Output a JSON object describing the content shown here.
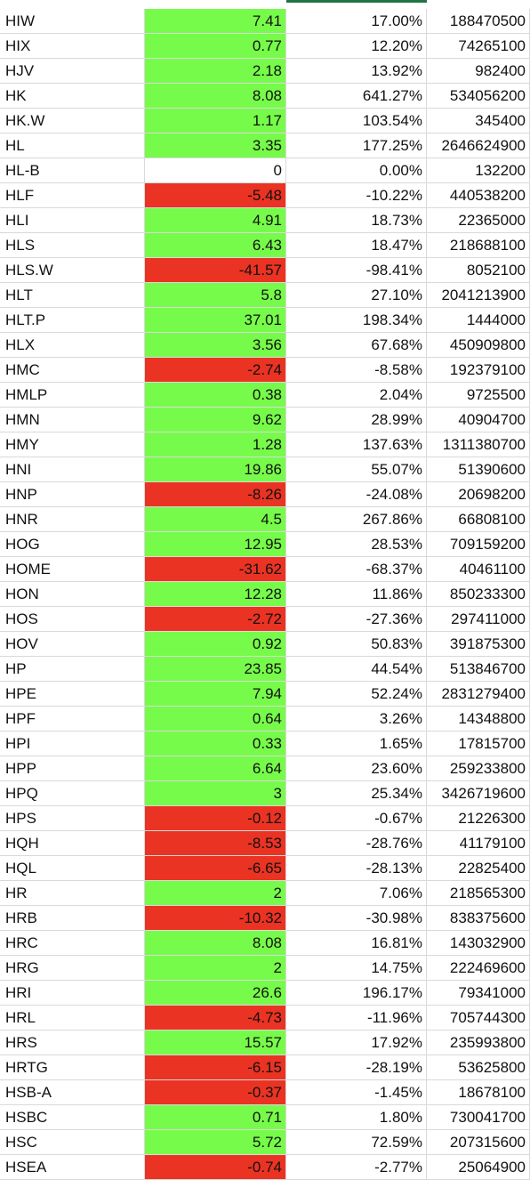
{
  "colors": {
    "positive": "#77fb4a",
    "negative": "#ea3323",
    "neutral": "#ffffff",
    "selection": "#217346"
  },
  "rows": [
    {
      "ticker": "HIW",
      "change": "7.41",
      "pct": "17.00%",
      "volume": "188470500",
      "status": "pos"
    },
    {
      "ticker": "HIX",
      "change": "0.77",
      "pct": "12.20%",
      "volume": "74265100",
      "status": "pos"
    },
    {
      "ticker": "HJV",
      "change": "2.18",
      "pct": "13.92%",
      "volume": "982400",
      "status": "pos"
    },
    {
      "ticker": "HK",
      "change": "8.08",
      "pct": "641.27%",
      "volume": "534056200",
      "status": "pos"
    },
    {
      "ticker": "HK.W",
      "change": "1.17",
      "pct": "103.54%",
      "volume": "345400",
      "status": "pos"
    },
    {
      "ticker": "HL",
      "change": "3.35",
      "pct": "177.25%",
      "volume": "2646624900",
      "status": "pos"
    },
    {
      "ticker": "HL-B",
      "change": "0",
      "pct": "0.00%",
      "volume": "132200",
      "status": "zero"
    },
    {
      "ticker": "HLF",
      "change": "-5.48",
      "pct": "-10.22%",
      "volume": "440538200",
      "status": "neg"
    },
    {
      "ticker": "HLI",
      "change": "4.91",
      "pct": "18.73%",
      "volume": "22365000",
      "status": "pos"
    },
    {
      "ticker": "HLS",
      "change": "6.43",
      "pct": "18.47%",
      "volume": "218688100",
      "status": "pos"
    },
    {
      "ticker": "HLS.W",
      "change": "-41.57",
      "pct": "-98.41%",
      "volume": "8052100",
      "status": "neg"
    },
    {
      "ticker": "HLT",
      "change": "5.8",
      "pct": "27.10%",
      "volume": "2041213900",
      "status": "pos"
    },
    {
      "ticker": "HLT.P",
      "change": "37.01",
      "pct": "198.34%",
      "volume": "1444000",
      "status": "pos"
    },
    {
      "ticker": "HLX",
      "change": "3.56",
      "pct": "67.68%",
      "volume": "450909800",
      "status": "pos"
    },
    {
      "ticker": "HMC",
      "change": "-2.74",
      "pct": "-8.58%",
      "volume": "192379100",
      "status": "neg"
    },
    {
      "ticker": "HMLP",
      "change": "0.38",
      "pct": "2.04%",
      "volume": "9725500",
      "status": "pos"
    },
    {
      "ticker": "HMN",
      "change": "9.62",
      "pct": "28.99%",
      "volume": "40904700",
      "status": "pos"
    },
    {
      "ticker": "HMY",
      "change": "1.28",
      "pct": "137.63%",
      "volume": "1311380700",
      "status": "pos"
    },
    {
      "ticker": "HNI",
      "change": "19.86",
      "pct": "55.07%",
      "volume": "51390600",
      "status": "pos"
    },
    {
      "ticker": "HNP",
      "change": "-8.26",
      "pct": "-24.08%",
      "volume": "20698200",
      "status": "neg"
    },
    {
      "ticker": "HNR",
      "change": "4.5",
      "pct": "267.86%",
      "volume": "66808100",
      "status": "pos"
    },
    {
      "ticker": "HOG",
      "change": "12.95",
      "pct": "28.53%",
      "volume": "709159200",
      "status": "pos"
    },
    {
      "ticker": "HOME",
      "change": "-31.62",
      "pct": "-68.37%",
      "volume": "40461100",
      "status": "neg"
    },
    {
      "ticker": "HON",
      "change": "12.28",
      "pct": "11.86%",
      "volume": "850233300",
      "status": "pos"
    },
    {
      "ticker": "HOS",
      "change": "-2.72",
      "pct": "-27.36%",
      "volume": "297411000",
      "status": "neg"
    },
    {
      "ticker": "HOV",
      "change": "0.92",
      "pct": "50.83%",
      "volume": "391875300",
      "status": "pos"
    },
    {
      "ticker": "HP",
      "change": "23.85",
      "pct": "44.54%",
      "volume": "513846700",
      "status": "pos"
    },
    {
      "ticker": "HPE",
      "change": "7.94",
      "pct": "52.24%",
      "volume": "2831279400",
      "status": "pos"
    },
    {
      "ticker": "HPF",
      "change": "0.64",
      "pct": "3.26%",
      "volume": "14348800",
      "status": "pos"
    },
    {
      "ticker": "HPI",
      "change": "0.33",
      "pct": "1.65%",
      "volume": "17815700",
      "status": "pos"
    },
    {
      "ticker": "HPP",
      "change": "6.64",
      "pct": "23.60%",
      "volume": "259233800",
      "status": "pos"
    },
    {
      "ticker": "HPQ",
      "change": "3",
      "pct": "25.34%",
      "volume": "3426719600",
      "status": "pos"
    },
    {
      "ticker": "HPS",
      "change": "-0.12",
      "pct": "-0.67%",
      "volume": "21226300",
      "status": "neg"
    },
    {
      "ticker": "HQH",
      "change": "-8.53",
      "pct": "-28.76%",
      "volume": "41179100",
      "status": "neg"
    },
    {
      "ticker": "HQL",
      "change": "-6.65",
      "pct": "-28.13%",
      "volume": "22825400",
      "status": "neg"
    },
    {
      "ticker": "HR",
      "change": "2",
      "pct": "7.06%",
      "volume": "218565300",
      "status": "pos"
    },
    {
      "ticker": "HRB",
      "change": "-10.32",
      "pct": "-30.98%",
      "volume": "838375600",
      "status": "neg"
    },
    {
      "ticker": "HRC",
      "change": "8.08",
      "pct": "16.81%",
      "volume": "143032900",
      "status": "pos"
    },
    {
      "ticker": "HRG",
      "change": "2",
      "pct": "14.75%",
      "volume": "222469600",
      "status": "pos"
    },
    {
      "ticker": "HRI",
      "change": "26.6",
      "pct": "196.17%",
      "volume": "79341000",
      "status": "pos"
    },
    {
      "ticker": "HRL",
      "change": "-4.73",
      "pct": "-11.96%",
      "volume": "705744300",
      "status": "neg"
    },
    {
      "ticker": "HRS",
      "change": "15.57",
      "pct": "17.92%",
      "volume": "235993800",
      "status": "pos"
    },
    {
      "ticker": "HRTG",
      "change": "-6.15",
      "pct": "-28.19%",
      "volume": "53625800",
      "status": "neg"
    },
    {
      "ticker": "HSB-A",
      "change": "-0.37",
      "pct": "-1.45%",
      "volume": "18678100",
      "status": "neg"
    },
    {
      "ticker": "HSBC",
      "change": "0.71",
      "pct": "1.80%",
      "volume": "730041700",
      "status": "pos"
    },
    {
      "ticker": "HSC",
      "change": "5.72",
      "pct": "72.59%",
      "volume": "207315600",
      "status": "pos"
    },
    {
      "ticker": "HSEA",
      "change": "-0.74",
      "pct": "-2.77%",
      "volume": "25064900",
      "status": "neg"
    }
  ]
}
